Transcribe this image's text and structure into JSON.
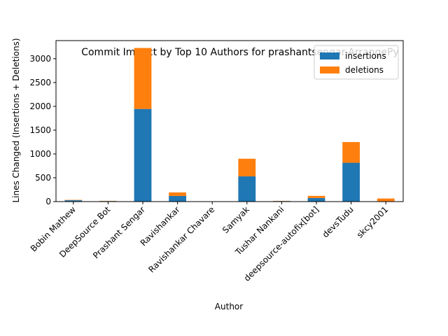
{
  "chart_data": {
    "type": "bar",
    "stacked": true,
    "title": "Commit Impact by Top 10 Authors for prashantsengar-ArrangePy",
    "xlabel": "Author",
    "ylabel": "Lines Changed (Insertions + Deletions)",
    "ylim": [
      0,
      3380
    ],
    "yticks": [
      0,
      500,
      1000,
      1500,
      2000,
      2500,
      3000
    ],
    "categories": [
      "Bobin Mathew",
      "DeepSource Bot",
      "Prashant Sengar",
      "Ravishankar",
      "Ravishankar Chavare",
      "Samyak",
      "Tushar Nankani",
      "deepsource-autofix[bot]",
      "devsTudu",
      "skcy2001"
    ],
    "series": [
      {
        "name": "insertions",
        "color": "#1f77b4",
        "values": [
          28,
          12,
          1945,
          118,
          2,
          530,
          12,
          75,
          815,
          8
        ]
      },
      {
        "name": "deletions",
        "color": "#ff7f0e",
        "values": [
          8,
          4,
          1280,
          75,
          1,
          370,
          4,
          45,
          435,
          57
        ]
      }
    ],
    "legend_position": "top-right",
    "grid": false
  }
}
